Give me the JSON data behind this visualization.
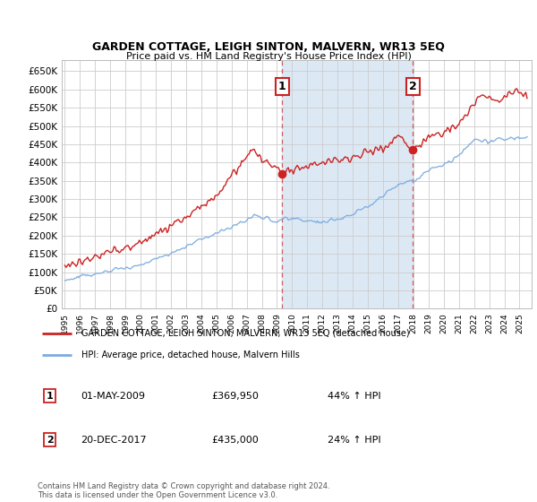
{
  "title": "GARDEN COTTAGE, LEIGH SINTON, MALVERN, WR13 5EQ",
  "subtitle": "Price paid vs. HM Land Registry's House Price Index (HPI)",
  "legend_line1": "GARDEN COTTAGE, LEIGH SINTON, MALVERN, WR13 5EQ (detached house)",
  "legend_line2": "HPI: Average price, detached house, Malvern Hills",
  "transaction1_date": "01-MAY-2009",
  "transaction1_price": "£369,950",
  "transaction1_hpi": "44% ↑ HPI",
  "transaction1_year": 2009.33,
  "transaction1_value": 369950,
  "transaction2_date": "20-DEC-2017",
  "transaction2_price": "£435,000",
  "transaction2_hpi": "24% ↑ HPI",
  "transaction2_year": 2017.97,
  "transaction2_value": 435000,
  "footer": "Contains HM Land Registry data © Crown copyright and database right 2024.\nThis data is licensed under the Open Government Licence v3.0.",
  "red_color": "#cc2222",
  "blue_color": "#7aaadd",
  "background_color": "#dce9f5",
  "grid_color": "#cccccc",
  "ylim_max": 680000,
  "xlim_start": 1994.8,
  "xlim_end": 2025.8
}
